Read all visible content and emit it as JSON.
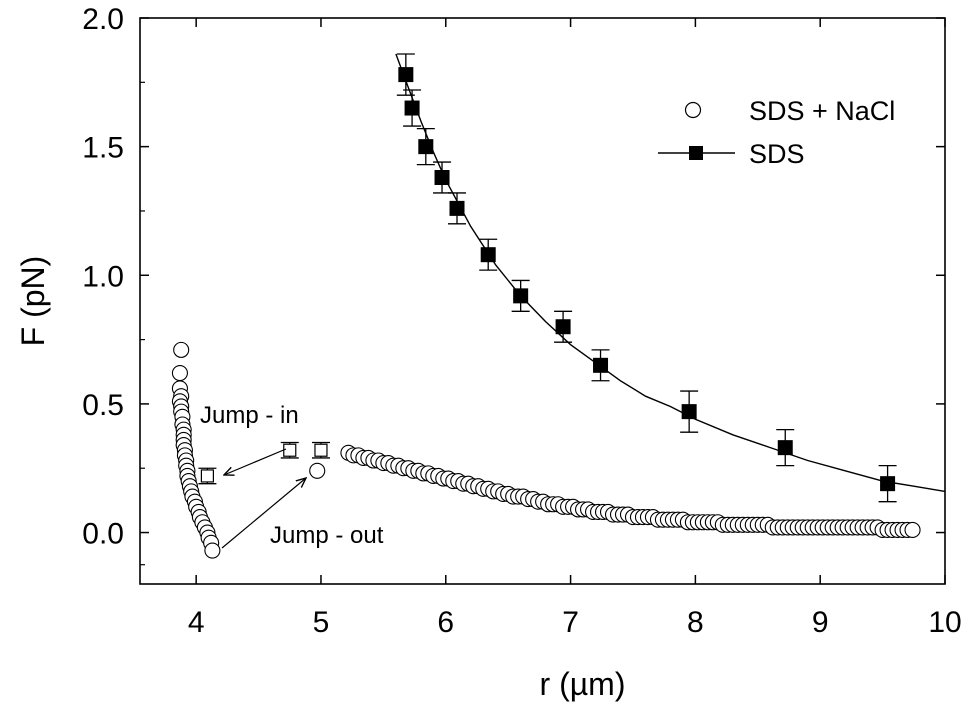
{
  "chart_data": {
    "type": "scatter",
    "xlabel": "r (µm)",
    "ylabel": "F (pN)",
    "xlim": [
      3.55,
      10
    ],
    "ylim": [
      -0.2,
      2.0
    ],
    "xticks": [
      4,
      5,
      6,
      7,
      8,
      9,
      10
    ],
    "yticks": [
      0.0,
      0.5,
      1.0,
      1.5,
      2.0
    ],
    "xtick_labels": [
      "4",
      "5",
      "6",
      "7",
      "8",
      "9",
      "10"
    ],
    "ytick_labels": [
      "0.0",
      "0.5",
      "1.0",
      "1.5",
      "2.0"
    ],
    "grid": false,
    "legend_position": "top-right",
    "series": [
      {
        "name": "SDS + NaCl",
        "marker": "open-circle",
        "line": false,
        "color": "#000000",
        "x": [
          3.88,
          3.87,
          3.87,
          3.88,
          3.87,
          3.88,
          3.88,
          3.89,
          3.89,
          3.9,
          3.9,
          3.9,
          3.9,
          3.91,
          3.91,
          3.92,
          3.92,
          3.93,
          3.93,
          3.94,
          3.95,
          3.96,
          3.97,
          3.99,
          4.0,
          4.02,
          4.03,
          4.05,
          4.07,
          4.09,
          4.1,
          4.12,
          4.13,
          4.97,
          5.22,
          5.26,
          5.3,
          5.34,
          5.38,
          5.42,
          5.46,
          5.5,
          5.54,
          5.58,
          5.62,
          5.66,
          5.7,
          5.74,
          5.78,
          5.82,
          5.86,
          5.9,
          5.94,
          5.98,
          6.02,
          6.06,
          6.1,
          6.14,
          6.18,
          6.22,
          6.26,
          6.3,
          6.34,
          6.38,
          6.42,
          6.46,
          6.5,
          6.54,
          6.58,
          6.62,
          6.66,
          6.7,
          6.74,
          6.78,
          6.82,
          6.86,
          6.9,
          6.94,
          6.98,
          7.02,
          7.06,
          7.1,
          7.14,
          7.18,
          7.22,
          7.26,
          7.3,
          7.34,
          7.38,
          7.42,
          7.46,
          7.5,
          7.54,
          7.58,
          7.62,
          7.66,
          7.7,
          7.74,
          7.78,
          7.82,
          7.86,
          7.9,
          7.94,
          7.98,
          8.02,
          8.06,
          8.1,
          8.14,
          8.18,
          8.22,
          8.26,
          8.3,
          8.34,
          8.38,
          8.42,
          8.46,
          8.5,
          8.54,
          8.58,
          8.62,
          8.66,
          8.7,
          8.74,
          8.78,
          8.82,
          8.86,
          8.9,
          8.94,
          8.98,
          9.02,
          9.06,
          9.1,
          9.14,
          9.18,
          9.22,
          9.26,
          9.3,
          9.34,
          9.38,
          9.42,
          9.46,
          9.5,
          9.54,
          9.58,
          9.62,
          9.66,
          9.7,
          9.74
        ],
        "y": [
          0.71,
          0.62,
          0.56,
          0.53,
          0.51,
          0.49,
          0.47,
          0.45,
          0.42,
          0.4,
          0.38,
          0.36,
          0.34,
          0.32,
          0.3,
          0.28,
          0.26,
          0.24,
          0.22,
          0.2,
          0.18,
          0.16,
          0.14,
          0.12,
          0.1,
          0.08,
          0.06,
          0.04,
          0.02,
          0.0,
          -0.02,
          -0.04,
          -0.07,
          0.24,
          0.31,
          0.3,
          0.3,
          0.29,
          0.29,
          0.28,
          0.28,
          0.27,
          0.27,
          0.26,
          0.26,
          0.25,
          0.25,
          0.24,
          0.24,
          0.23,
          0.23,
          0.22,
          0.22,
          0.21,
          0.21,
          0.2,
          0.2,
          0.19,
          0.19,
          0.18,
          0.18,
          0.17,
          0.17,
          0.16,
          0.16,
          0.15,
          0.15,
          0.14,
          0.14,
          0.14,
          0.13,
          0.13,
          0.12,
          0.12,
          0.11,
          0.11,
          0.11,
          0.1,
          0.1,
          0.1,
          0.09,
          0.09,
          0.09,
          0.08,
          0.08,
          0.08,
          0.08,
          0.07,
          0.07,
          0.07,
          0.07,
          0.06,
          0.06,
          0.06,
          0.06,
          0.06,
          0.05,
          0.05,
          0.05,
          0.05,
          0.05,
          0.05,
          0.04,
          0.04,
          0.04,
          0.04,
          0.04,
          0.04,
          0.04,
          0.03,
          0.03,
          0.03,
          0.03,
          0.03,
          0.03,
          0.03,
          0.03,
          0.03,
          0.03,
          0.02,
          0.02,
          0.02,
          0.02,
          0.02,
          0.02,
          0.02,
          0.02,
          0.02,
          0.02,
          0.02,
          0.02,
          0.02,
          0.02,
          0.02,
          0.02,
          0.02,
          0.02,
          0.02,
          0.02,
          0.02,
          0.02,
          0.01,
          0.01,
          0.01,
          0.01,
          0.01,
          0.01,
          0.01
        ]
      },
      {
        "name": "SDS",
        "marker": "filled-square",
        "line": true,
        "color": "#000000",
        "x": [
          5.68,
          5.73,
          5.84,
          5.97,
          6.09,
          6.34,
          6.6,
          6.94,
          7.24,
          7.95,
          8.72,
          9.54
        ],
        "y": [
          1.78,
          1.65,
          1.5,
          1.38,
          1.26,
          1.08,
          0.92,
          0.8,
          0.65,
          0.47,
          0.33,
          0.19
        ],
        "err": [
          0.08,
          0.07,
          0.07,
          0.06,
          0.06,
          0.06,
          0.06,
          0.06,
          0.06,
          0.08,
          0.07,
          0.07
        ]
      },
      {
        "name": "",
        "marker": "open-square",
        "line": false,
        "color": "#000000",
        "x": [
          4.09,
          4.75,
          5.0
        ],
        "y": [
          0.22,
          0.32,
          0.32
        ],
        "err": [
          0.03,
          0.03,
          0.03
        ]
      }
    ],
    "fit_curve": {
      "x": [
        5.6,
        5.7,
        5.8,
        5.9,
        6.0,
        6.2,
        6.4,
        6.6,
        6.8,
        7.0,
        7.2,
        7.4,
        7.6,
        7.8,
        8.0,
        8.3,
        8.6,
        8.9,
        9.2,
        9.5,
        9.75,
        10.0
      ],
      "y": [
        1.86,
        1.73,
        1.6,
        1.48,
        1.37,
        1.19,
        1.04,
        0.92,
        0.82,
        0.73,
        0.66,
        0.59,
        0.53,
        0.49,
        0.44,
        0.38,
        0.33,
        0.28,
        0.24,
        0.2,
        0.18,
        0.16
      ]
    },
    "annotations": [
      {
        "text": "Jump - in",
        "arrow_from": [
          4.4,
          0.3
        ],
        "arrow_to": [
          4.16,
          0.22
        ]
      },
      {
        "text": "Jump - out",
        "arrow_from": [
          4.15,
          -0.06
        ],
        "arrow_to": [
          4.95,
          0.22
        ]
      }
    ]
  }
}
